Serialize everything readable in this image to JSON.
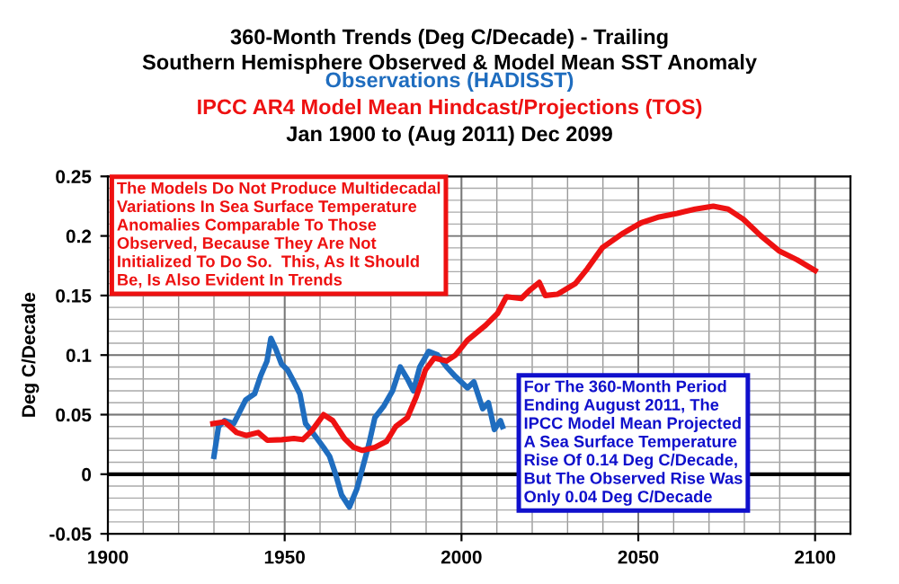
{
  "chart_data": {
    "type": "line",
    "title": "360-Month Trends (Deg C/Decade) - Trailing\nSouthern Hemisphere Observed & Model Mean SST Anomaly",
    "subtitle": "Jan 1900 to (Aug 2011) Dec 2099",
    "ylabel": "Deg C/Decade",
    "series": [
      {
        "name": "Observations (HADISST)",
        "color": "#1f6dbf",
        "x": [
          1930.0,
          1931.3,
          1933.0,
          1935.6,
          1939.0,
          1941.5,
          1943.2,
          1945.0,
          1946.1,
          1947.5,
          1949.1,
          1950.8,
          1952.6,
          1954.3,
          1955.9,
          1958.5,
          1961.0,
          1962.7,
          1964.4,
          1966.1,
          1968.3,
          1970.4,
          1972.0,
          1973.8,
          1975.5,
          1978.1,
          1980.5,
          1982.7,
          1984.7,
          1986.4,
          1988.2,
          1990.7,
          1993.3,
          1995.8,
          1998.3,
          1999.9,
          2001.7,
          2003.5,
          2006.0,
          2007.6,
          2009.3,
          2011.0,
          2011.6
        ],
        "values": [
          0.015,
          0.04,
          0.045,
          0.0425,
          0.0625,
          0.0675,
          0.0825,
          0.095,
          0.114,
          0.105,
          0.0925,
          0.0875,
          0.0775,
          0.0675,
          0.0425,
          0.0325,
          0.0225,
          0.015,
          0.0,
          -0.0175,
          -0.0275,
          -0.0125,
          0.005,
          0.025,
          0.0475,
          0.0575,
          0.07,
          0.09,
          0.08,
          0.07,
          0.09,
          0.103,
          0.1,
          0.09,
          0.082,
          0.0775,
          0.0725,
          0.0775,
          0.055,
          0.06,
          0.0375,
          0.045,
          0.04
        ]
      },
      {
        "name": "IPCC AR4 Model Mean Hindcast/Projections (TOS)",
        "color": "#ee1111",
        "x": [
          1929.7,
          1933.0,
          1936.4,
          1939.1,
          1942.5,
          1945.1,
          1949.2,
          1952.6,
          1955.1,
          1957.7,
          1961.0,
          1963.6,
          1966.9,
          1969.5,
          1972.0,
          1975.5,
          1978.8,
          1981.4,
          1984.7,
          1987.2,
          1989.8,
          1992.3,
          1995.8,
          1998.3,
          2001.7,
          2006.8,
          2010.2,
          2012.7,
          2016.9,
          2019.5,
          2022.0,
          2023.7,
          2027.1,
          2032.2,
          2035.6,
          2039.8,
          2045.8,
          2050.8,
          2055.9,
          2061.0,
          2066.1,
          2071.2,
          2075.4,
          2079.7,
          2084.7,
          2089.8,
          2094.9,
          2100.0
        ],
        "values": [
          0.0425,
          0.044,
          0.035,
          0.0325,
          0.035,
          0.0285,
          0.029,
          0.03,
          0.029,
          0.0365,
          0.05,
          0.045,
          0.03,
          0.0225,
          0.02,
          0.0225,
          0.0275,
          0.04,
          0.0475,
          0.065,
          0.0875,
          0.0975,
          0.095,
          0.1,
          0.1125,
          0.125,
          0.135,
          0.149,
          0.1475,
          0.155,
          0.161,
          0.15,
          0.151,
          0.16,
          0.1725,
          0.19,
          0.2025,
          0.211,
          0.216,
          0.219,
          0.2225,
          0.225,
          0.2225,
          0.214,
          0.2,
          0.1875,
          0.18,
          0.171
        ]
      }
    ],
    "xlim": [
      1900,
      2110
    ],
    "xticks": [
      1900,
      1950,
      2000,
      2050,
      2100
    ],
    "ylim": [
      -0.05,
      0.25
    ],
    "yticks": [
      -0.05,
      0,
      0.05,
      0.1,
      0.15,
      0.2,
      0.25
    ],
    "grid": true,
    "legend": false,
    "marker": "none",
    "line_style": "solid",
    "ref_lines": [
      {
        "axis": "y",
        "value": 0,
        "color": "#000000"
      }
    ],
    "annotations": [
      "The Models Do Not Produce Multidecadal\nVariations In Sea Surface Temperature\nAnomalies Comparable To Those\nObserved, Because They Are Not\nInitialized To Do So.  This, As It Should\nBe, Is Also Evident In Trends",
      "For The 360-Month Period\nEnding August 2011, The\nIPCC Model Mean Projected\nA Sea Surface Temperature\nRise Of 0.14 Deg C/Decade,\nBut The Observed Rise Was\nOnly 0.04 Deg C/Decade"
    ]
  }
}
